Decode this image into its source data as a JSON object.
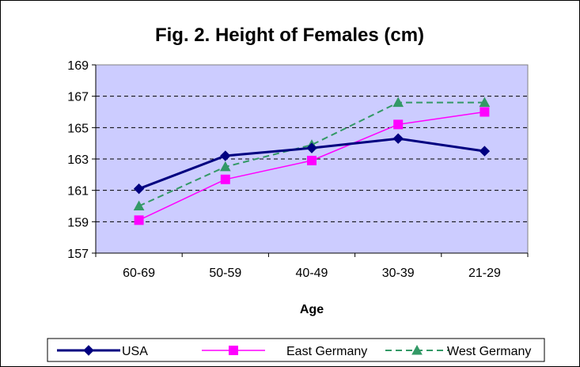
{
  "chart_data": {
    "type": "line",
    "title": "Fig. 2. Height of Females (cm)",
    "xlabel": "Age",
    "ylabel": "",
    "categories": [
      "60-69",
      "50-59",
      "40-49",
      "30-39",
      "21-29"
    ],
    "yticks": [
      "157",
      "159",
      "161",
      "163",
      "165",
      "167",
      "169"
    ],
    "ylim": [
      157,
      169
    ],
    "grid": "dashed horizontal",
    "legend": "bottom",
    "plot_background": "#ccccff",
    "series": [
      {
        "name": "USA",
        "values": [
          161.1,
          163.2,
          163.7,
          164.3,
          163.5
        ],
        "color": "#000080",
        "marker": "diamond",
        "line": "solid-thick"
      },
      {
        "name": "East Germany",
        "values": [
          159.1,
          161.7,
          162.9,
          165.2,
          166.0
        ],
        "color": "#ff00ff",
        "marker": "square",
        "line": "solid"
      },
      {
        "name": "West Germany",
        "values": [
          160.0,
          162.5,
          163.9,
          166.6,
          166.6
        ],
        "color": "#339966",
        "marker": "triangle",
        "line": "dashed"
      }
    ]
  }
}
